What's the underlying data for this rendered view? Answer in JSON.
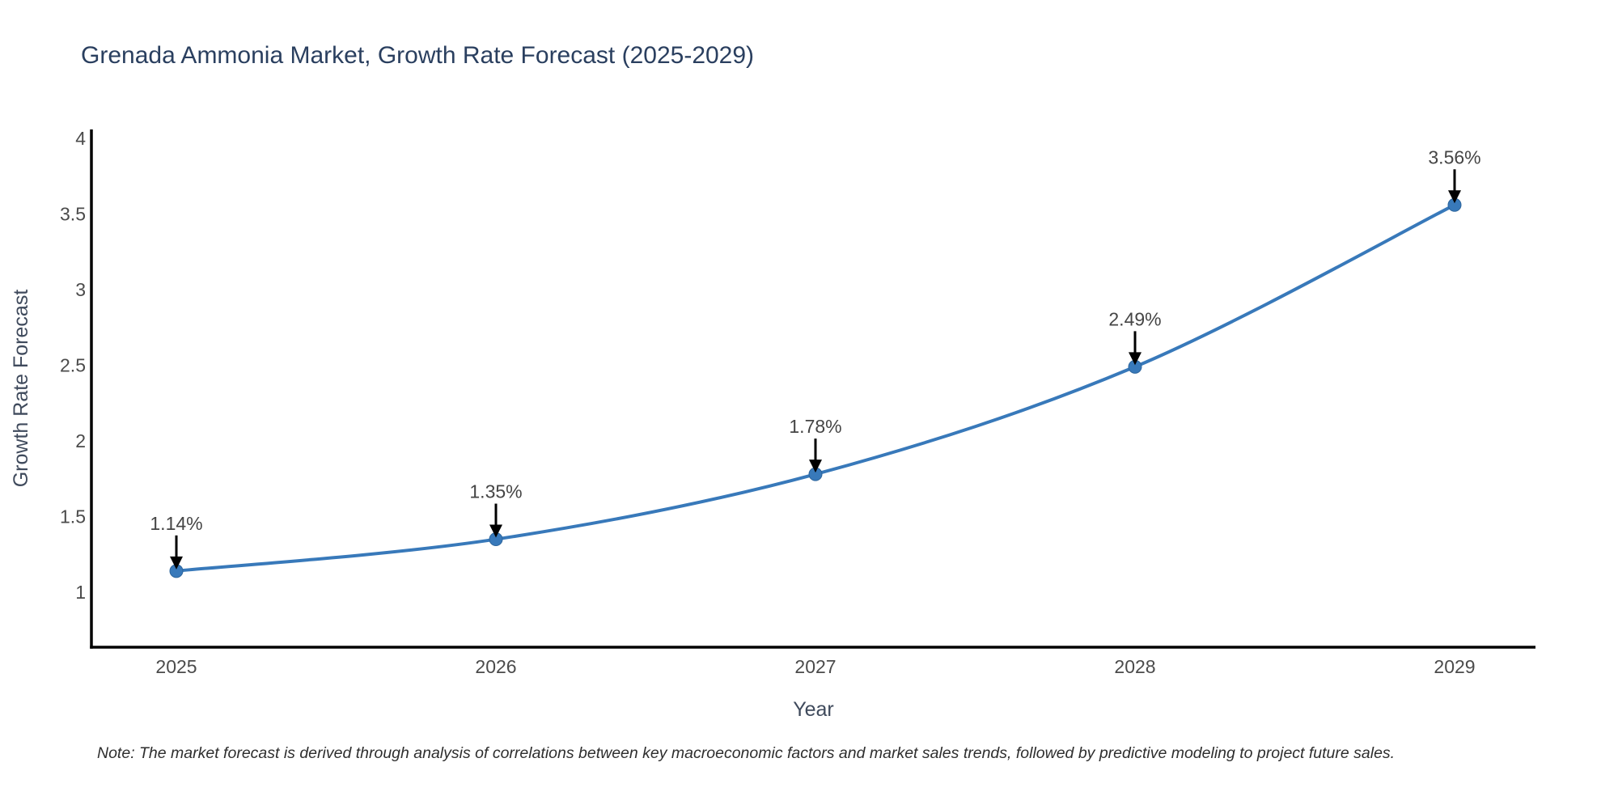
{
  "title": "Grenada Ammonia Market, Growth Rate Forecast (2025-2029)",
  "note": "Note: The market forecast is derived through analysis of correlations between key macroeconomic factors and market sales trends, followed by predictive modeling to project future sales.",
  "chart_data": {
    "type": "line",
    "title": "Grenada Ammonia Market, Growth Rate Forecast (2025-2029)",
    "categories": [
      "2025",
      "2026",
      "2027",
      "2028",
      "2029"
    ],
    "x": [
      2025,
      2026,
      2027,
      2028,
      2029
    ],
    "values": [
      1.14,
      1.35,
      1.78,
      2.49,
      3.56
    ],
    "point_labels": [
      "1.14%",
      "1.35%",
      "1.78%",
      "2.49%",
      "3.56%"
    ],
    "xlabel": "Year",
    "ylabel": "Growth Rate Forecast",
    "yticks": [
      4,
      3.5,
      3,
      2.5,
      2,
      1.5,
      1
    ],
    "ytick_labels": [
      "4",
      "3.5",
      "3",
      "2.5",
      "2",
      "1.5",
      "1"
    ],
    "ylim": [
      0.64,
      4.06
    ],
    "grid": false,
    "legend": false,
    "line_shape": "spline",
    "colors": {
      "line": "#3879ba",
      "marker": "#3879ba",
      "marker_edge": "#2d659c",
      "axis": "#000000",
      "annotation_arrow": "#000000",
      "annotation_text": "#454545",
      "tick_text": "#4b4b4b",
      "axis_title_text": "#3f4a5c",
      "title_text": "#2a3f5f"
    }
  }
}
